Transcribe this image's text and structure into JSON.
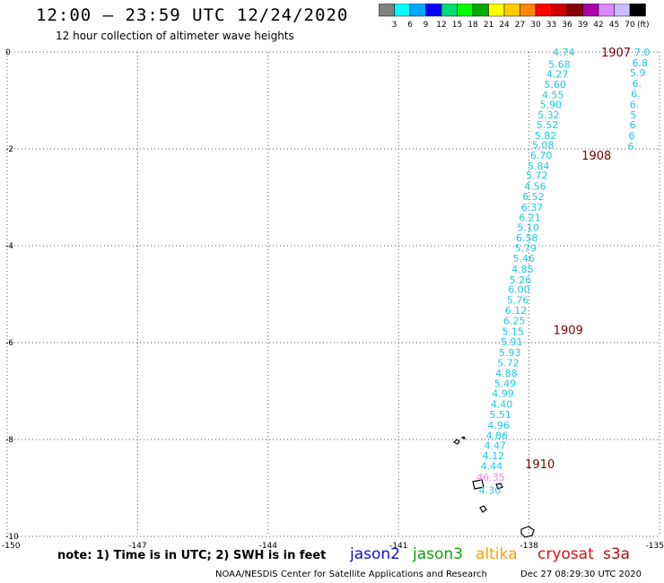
{
  "header": {
    "title": "12:00 – 23:59 UTC 12/24/2020",
    "subtitle": "12 hour collection of altimeter wave heights"
  },
  "colorbar": {
    "colors": [
      "#808080",
      "#00ffff",
      "#00aaff",
      "#0000ff",
      "#00dd77",
      "#00ff00",
      "#00aa00",
      "#ffff00",
      "#ffcc00",
      "#ff8800",
      "#ff0000",
      "#cc0000",
      "#880000",
      "#aa00aa",
      "#dd88ff",
      "#ccbbff",
      "#000000"
    ],
    "labels": [
      "3",
      "6",
      "9",
      "12",
      "15",
      "18",
      "21",
      "24",
      "27",
      "30",
      "33",
      "36",
      "39",
      "42",
      "45",
      "70",
      "(ft)"
    ]
  },
  "chart_data": {
    "type": "scatter",
    "title": "12:00 – 23:59 UTC 12/24/2020",
    "subtitle": "12 hour collection of altimeter wave heights",
    "xlim": [
      -150,
      -135
    ],
    "ylim": [
      -10,
      0
    ],
    "x_ticks": [
      "-150",
      "-147",
      "-144",
      "-141",
      "-138",
      "-135"
    ],
    "y_ticks": [
      "0",
      "-2",
      "-4",
      "-6",
      "-8",
      "-10"
    ],
    "grid": true,
    "series": [
      {
        "name": "jason3",
        "color": "#1ec8e6",
        "points": [
          {
            "x": -137.2,
            "y": -0.0,
            "label": "4.74"
          },
          {
            "x": -137.3,
            "y": -0.25,
            "label": "5.68"
          },
          {
            "x": -137.35,
            "y": -0.45,
            "label": "4.27"
          },
          {
            "x": -137.4,
            "y": -0.67,
            "label": "5.60"
          },
          {
            "x": -137.45,
            "y": -0.88,
            "label": "4.55"
          },
          {
            "x": -137.5,
            "y": -1.08,
            "label": "5.90"
          },
          {
            "x": -137.55,
            "y": -1.3,
            "label": "5.32"
          },
          {
            "x": -137.58,
            "y": -1.5,
            "label": "5.52"
          },
          {
            "x": -137.62,
            "y": -1.72,
            "label": "5.82"
          },
          {
            "x": -137.68,
            "y": -1.92,
            "label": "5.08"
          },
          {
            "x": -137.72,
            "y": -2.13,
            "label": "6.70"
          },
          {
            "x": -137.78,
            "y": -2.35,
            "label": "5.84"
          },
          {
            "x": -137.82,
            "y": -2.55,
            "label": "5.72"
          },
          {
            "x": -137.86,
            "y": -2.77,
            "label": "4.56"
          },
          {
            "x": -137.9,
            "y": -2.98,
            "label": "6.52"
          },
          {
            "x": -137.93,
            "y": -3.2,
            "label": "6.37"
          },
          {
            "x": -137.98,
            "y": -3.42,
            "label": "6.21"
          },
          {
            "x": -138.02,
            "y": -3.62,
            "label": "5.10"
          },
          {
            "x": -138.05,
            "y": -3.83,
            "label": "6.58"
          },
          {
            "x": -138.08,
            "y": -4.05,
            "label": "5.79"
          },
          {
            "x": -138.12,
            "y": -4.26,
            "label": "5.46"
          },
          {
            "x": -138.15,
            "y": -4.48,
            "label": "4.85"
          },
          {
            "x": -138.2,
            "y": -4.7,
            "label": "5.26"
          },
          {
            "x": -138.23,
            "y": -4.9,
            "label": "6.00"
          },
          {
            "x": -138.26,
            "y": -5.12,
            "label": "5.76"
          },
          {
            "x": -138.3,
            "y": -5.33,
            "label": "6.12"
          },
          {
            "x": -138.34,
            "y": -5.55,
            "label": "6.25"
          },
          {
            "x": -138.37,
            "y": -5.77,
            "label": "5.15"
          },
          {
            "x": -138.4,
            "y": -5.98,
            "label": "5.91"
          },
          {
            "x": -138.44,
            "y": -6.2,
            "label": "5.93"
          },
          {
            "x": -138.48,
            "y": -6.42,
            "label": "5.72"
          },
          {
            "x": -138.52,
            "y": -6.63,
            "label": "4.88"
          },
          {
            "x": -138.55,
            "y": -6.84,
            "label": "5.49"
          },
          {
            "x": -138.6,
            "y": -7.05,
            "label": "4.99"
          },
          {
            "x": -138.63,
            "y": -7.27,
            "label": "4.40"
          },
          {
            "x": -138.66,
            "y": -7.48,
            "label": "5.51"
          },
          {
            "x": -138.7,
            "y": -7.7,
            "label": "4.96"
          },
          {
            "x": -138.74,
            "y": -7.92,
            "label": "4.86"
          },
          {
            "x": -138.78,
            "y": -8.12,
            "label": "4.47"
          },
          {
            "x": -138.82,
            "y": -8.33,
            "label": "4.12"
          },
          {
            "x": -138.86,
            "y": -8.55,
            "label": "4.44"
          },
          {
            "x": -138.9,
            "y": -9.05,
            "label": "4.30"
          }
        ]
      },
      {
        "name": "jason3-east",
        "color": "#1ec8e6",
        "points": [
          {
            "x": -135.4,
            "y": -0.0,
            "label": "7.0"
          },
          {
            "x": -135.45,
            "y": -0.22,
            "label": "6.8"
          },
          {
            "x": -135.5,
            "y": -0.43,
            "label": "5.9"
          },
          {
            "x": -135.52,
            "y": -0.65,
            "label": "6."
          },
          {
            "x": -135.55,
            "y": -0.86,
            "label": "6."
          },
          {
            "x": -135.58,
            "y": -1.08,
            "label": "6."
          },
          {
            "x": -135.6,
            "y": -1.3,
            "label": "5"
          },
          {
            "x": -135.62,
            "y": -1.5,
            "label": "6"
          },
          {
            "x": -135.64,
            "y": -1.72,
            "label": "6"
          },
          {
            "x": -135.66,
            "y": -1.94,
            "label": "6"
          }
        ]
      },
      {
        "name": "other",
        "color": "#ee88ee",
        "points": [
          {
            "x": -138.88,
            "y": -8.78,
            "label": "46.35"
          }
        ]
      }
    ],
    "time_labels": [
      {
        "x": -136.0,
        "y": -0.0,
        "label": "1907"
      },
      {
        "x": -136.45,
        "y": -2.13,
        "label": "1908"
      },
      {
        "x": -137.1,
        "y": -5.73,
        "label": "1909"
      },
      {
        "x": -137.75,
        "y": -8.5,
        "label": "1910"
      }
    ]
  },
  "footer": {
    "note": "note:  1) Time is in UTC;  2) SWH is in feet",
    "satellites": [
      {
        "name": "jason2",
        "color": "#1010d8"
      },
      {
        "name": "jason3",
        "color": "#10a010"
      },
      {
        "name": "altika",
        "color": "#ff9900"
      },
      {
        "name": "cryosat",
        "color": "#dd1010"
      },
      {
        "name": "s3a",
        "color": "#aa1010"
      }
    ],
    "source": "NOAA/NESDIS Center for Satellite Applications and Research",
    "date": "Dec 27 08:29:30 UTC 2020"
  }
}
